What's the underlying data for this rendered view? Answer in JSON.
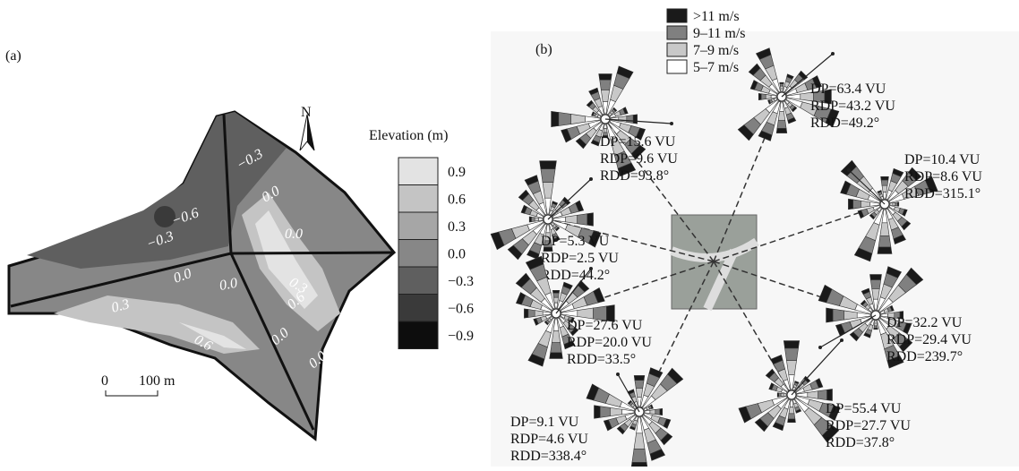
{
  "panel_a": {
    "label": "(a)",
    "north": "N",
    "legend_title": "Elevation (m)",
    "legend": [
      {
        "label": "0.9",
        "color": "#e3e3e3"
      },
      {
        "label": "0.6",
        "color": "#c4c4c4"
      },
      {
        "label": "0.3",
        "color": "#a6a6a6"
      },
      {
        "label": "0.0",
        "color": "#878787"
      },
      {
        "label": "−0.3",
        "color": "#5f5f5f"
      },
      {
        "label": "−0.6",
        "color": "#3a3a3a"
      },
      {
        "label": "−0.9",
        "color": "#0d0d0d"
      }
    ],
    "contour_labels": [
      "−0.3",
      "0.0",
      "−0.6",
      "−0.3",
      "0.0",
      "0.0",
      "0.0",
      "0.3",
      "0.6",
      "0.3",
      "0.6",
      "0.0",
      "0.0"
    ],
    "scale": [
      "0",
      "100 m"
    ]
  },
  "panel_b": {
    "label": "(b)",
    "legend": [
      {
        "label": ">11 m/s",
        "color": "#1a1a1a"
      },
      {
        "label": "9–11 m/s",
        "color": "#808080"
      },
      {
        "label": "7–9 m/s",
        "color": "#c8c8c8"
      },
      {
        "label": "5–7 m/s",
        "color": "#ffffff"
      }
    ],
    "stations": [
      {
        "lines": [
          "DP=63.4 VU",
          "RDP=43.2 VU",
          "RDD=49.2°"
        ]
      },
      {
        "lines": [
          "DP=15.6 VU",
          "RDP=9.6 VU",
          "RDD=93.8°"
        ]
      },
      {
        "lines": [
          "DP=10.4 VU",
          "RDP=8.6 VU",
          "RDD=315.1°"
        ]
      },
      {
        "lines": [
          "DP=5.3 VU",
          "RDP=2.5 VU",
          "RDD=44.2°"
        ]
      },
      {
        "lines": [
          "DP=32.2 VU",
          "RDP=29.4 VU",
          "RDD=239.7°"
        ]
      },
      {
        "lines": [
          "DP=27.6 VU",
          "RDP=20.0 VU",
          "RDD=33.5°"
        ]
      },
      {
        "lines": [
          "DP=55.4 VU",
          "RDP=27.7 VU",
          "RDD=37.8°"
        ]
      },
      {
        "lines": [
          "DP=9.1 VU",
          "RDP=4.6 VU",
          "RDD=338.4°"
        ]
      }
    ]
  }
}
